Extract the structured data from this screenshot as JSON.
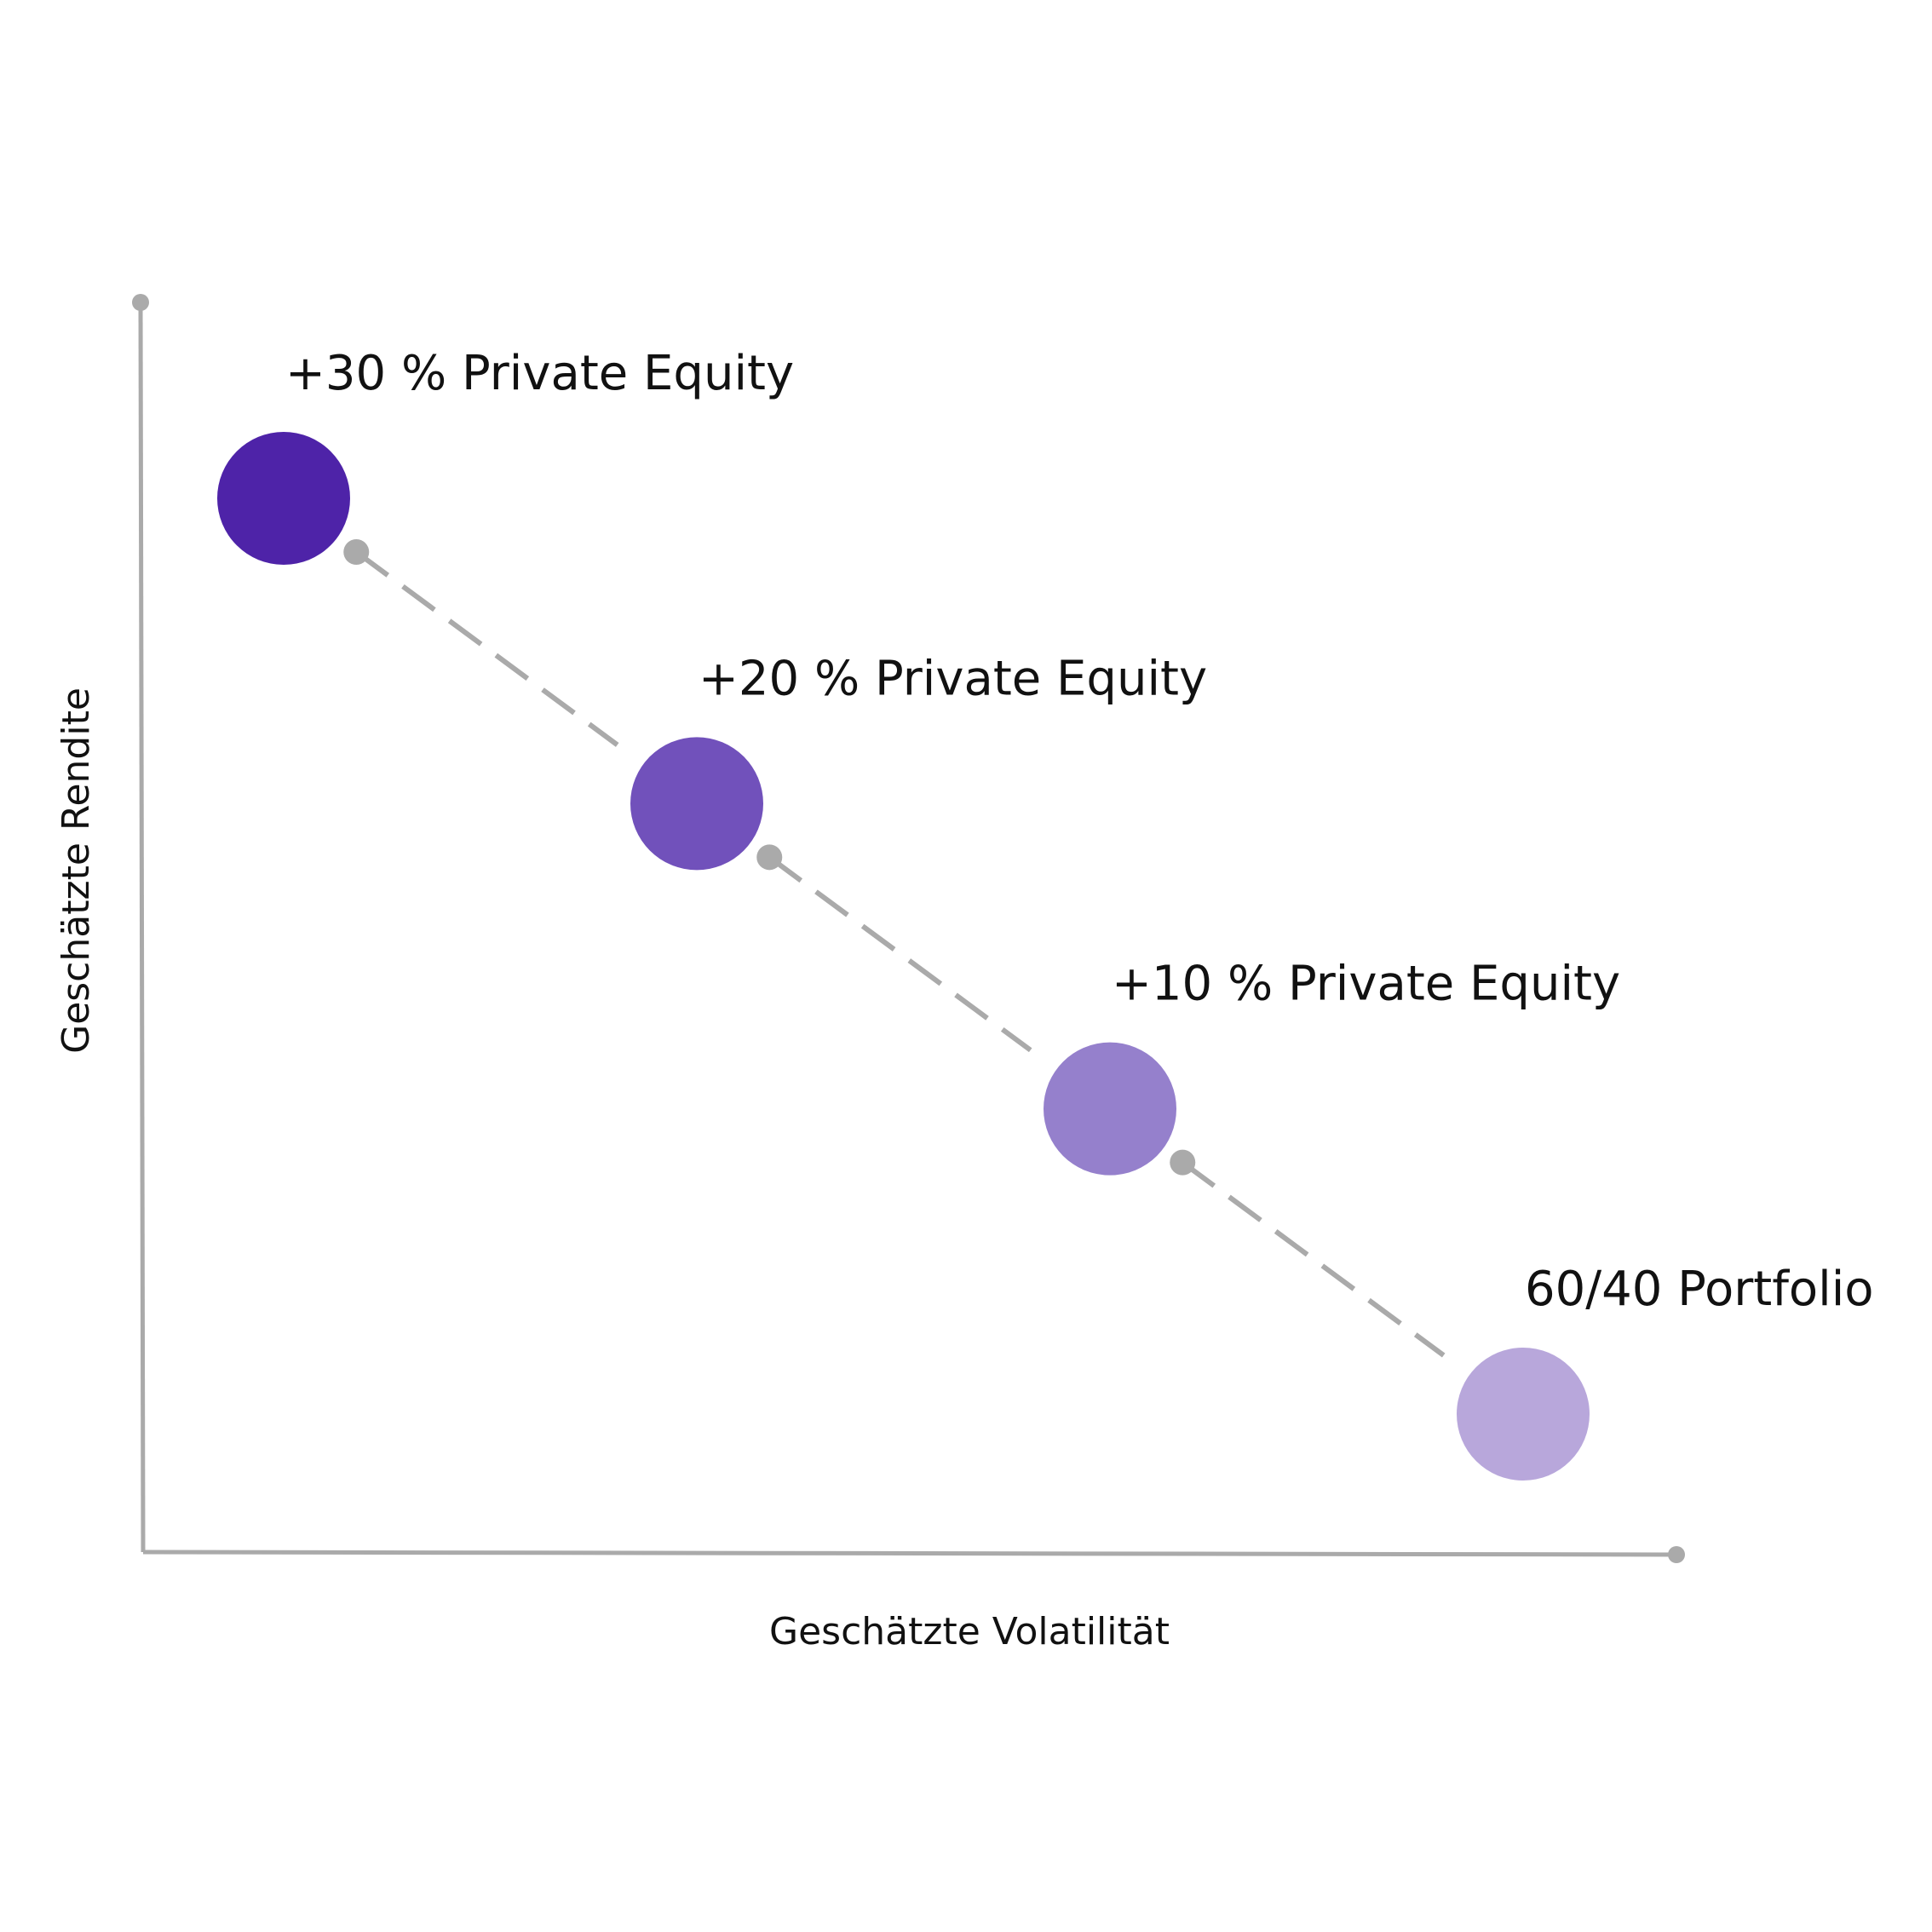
{
  "chart_data": {
    "type": "scatter",
    "title": "",
    "xlabel": "Geschätzte Volatilität",
    "ylabel": "Geschätzte Rendite",
    "grid": false,
    "legend": "none",
    "axis_color": "#aaaaaa",
    "connector_color": "#aaaaaa",
    "points": [
      {
        "label": "+30 % Private Equity",
        "x": 1,
        "y": 4,
        "color": "#4e23a8"
      },
      {
        "label": "+20 % Private Equity",
        "x": 2,
        "y": 3,
        "color": "#7151bb"
      },
      {
        "label": "+10 % Private Equity",
        "x": 3,
        "y": 2,
        "color": "#9580cc"
      },
      {
        "label": "60/40 Portfolio",
        "x": 4,
        "y": 1,
        "color": "#b8a7db"
      }
    ]
  }
}
